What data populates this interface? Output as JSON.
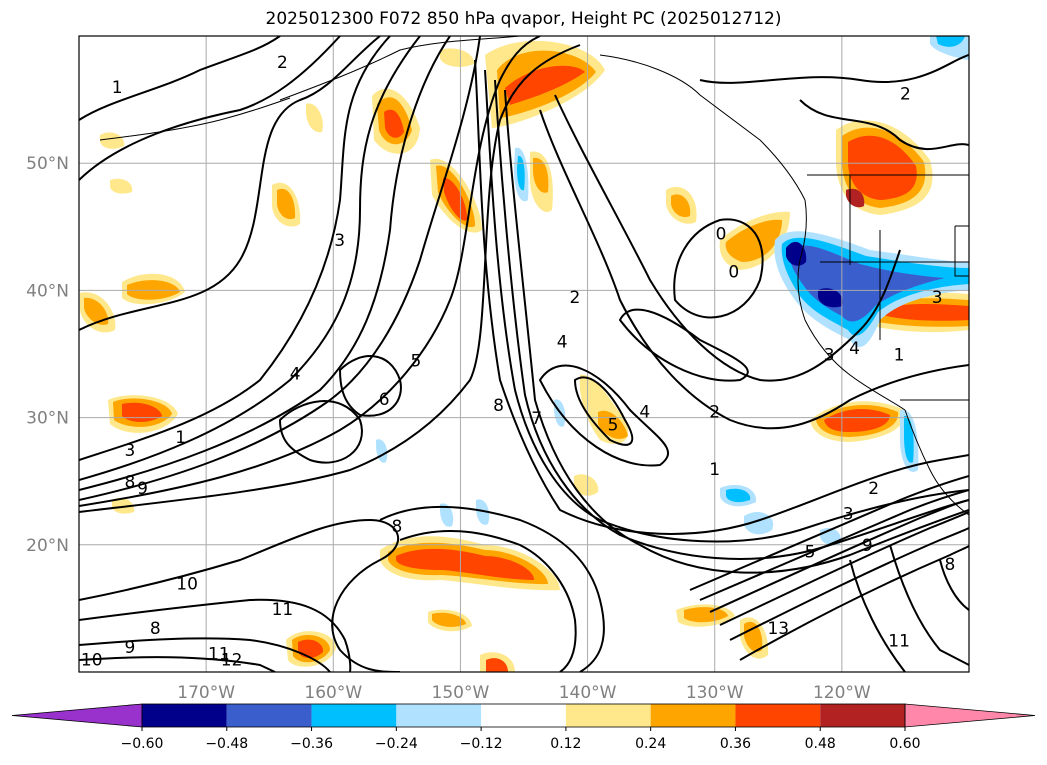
{
  "title": "2025012300 F072 850 hPa qvapor, Height PC (2025012712)",
  "map": {
    "projection": "lat-lon",
    "extent": {
      "lon_min": -180,
      "lon_max": -110,
      "lat_min": 10,
      "lat_max": 60
    },
    "gridlines": true,
    "lat_labels": [
      {
        "lat": 50,
        "text": "50°N"
      },
      {
        "lat": 40,
        "text": "40°N"
      },
      {
        "lat": 30,
        "text": "30°N"
      },
      {
        "lat": 20,
        "text": "20°N"
      }
    ],
    "lon_labels": [
      {
        "lon": -170,
        "text": "170°W"
      },
      {
        "lon": -160,
        "text": "160°W"
      },
      {
        "lon": -150,
        "text": "150°W"
      },
      {
        "lon": -140,
        "text": "140°W"
      },
      {
        "lon": -130,
        "text": "130°W"
      },
      {
        "lon": -120,
        "text": "120°W"
      }
    ]
  },
  "colorbar": {
    "levels": [
      -0.6,
      -0.48,
      -0.36,
      -0.24,
      -0.12,
      0.12,
      0.24,
      0.36,
      0.48,
      0.6
    ],
    "tick_labels": [
      "−0.60",
      "−0.48",
      "−0.36",
      "−0.24",
      "−0.12",
      "0.12",
      "0.24",
      "0.36",
      "0.48",
      "0.60"
    ],
    "colors": [
      "#9932CC",
      "#00008B",
      "#3A5FCD",
      "#00BFFF",
      "#B0E2FF",
      "#FFFFFF",
      "#FFE88C",
      "#FFA500",
      "#FF4500",
      "#B22222",
      "#FF88AA"
    ],
    "extend": "both"
  },
  "contour_labels": [
    {
      "text": "1",
      "lon": -177,
      "lat": 55.5
    },
    {
      "text": "2",
      "lon": -164,
      "lat": 57.5
    },
    {
      "text": "3",
      "lon": -159.5,
      "lat": 43.5
    },
    {
      "text": "4",
      "lon": -163,
      "lat": 33
    },
    {
      "text": "5",
      "lon": -153.5,
      "lat": 34
    },
    {
      "text": "6",
      "lon": -156,
      "lat": 31
    },
    {
      "text": "3",
      "lon": -176,
      "lat": 27
    },
    {
      "text": "1",
      "lon": -172,
      "lat": 28
    },
    {
      "text": "8",
      "lon": -176,
      "lat": 24.5
    },
    {
      "text": "9",
      "lon": -175,
      "lat": 24
    },
    {
      "text": "2",
      "lon": -141,
      "lat": 39
    },
    {
      "text": "4",
      "lon": -142,
      "lat": 35.5
    },
    {
      "text": "8",
      "lon": -147,
      "lat": 30.5
    },
    {
      "text": "7",
      "lon": -144,
      "lat": 29.5
    },
    {
      "text": "5",
      "lon": -138,
      "lat": 29
    },
    {
      "text": "4",
      "lon": -135.5,
      "lat": 30
    },
    {
      "text": "2",
      "lon": -130,
      "lat": 30
    },
    {
      "text": "0",
      "lon": -129.5,
      "lat": 44
    },
    {
      "text": "0",
      "lon": -128.5,
      "lat": 41
    },
    {
      "text": "1",
      "lon": -130,
      "lat": 25.5
    },
    {
      "text": "2",
      "lon": -115,
      "lat": 55
    },
    {
      "text": "3",
      "lon": -121,
      "lat": 34.5
    },
    {
      "text": "4",
      "lon": -119,
      "lat": 35
    },
    {
      "text": "3",
      "lon": -112.5,
      "lat": 39
    },
    {
      "text": "1",
      "lon": -115.5,
      "lat": 34.5
    },
    {
      "text": "2",
      "lon": -117.5,
      "lat": 24
    },
    {
      "text": "3",
      "lon": -119.5,
      "lat": 22
    },
    {
      "text": "5",
      "lon": -122.5,
      "lat": 19
    },
    {
      "text": "9",
      "lon": -118,
      "lat": 19.5
    },
    {
      "text": "13",
      "lon": -125,
      "lat": 13
    },
    {
      "text": "10",
      "lon": -171.5,
      "lat": 16.5
    },
    {
      "text": "11",
      "lon": -164,
      "lat": 14.5
    },
    {
      "text": "8",
      "lon": -174,
      "lat": 13
    },
    {
      "text": "9",
      "lon": -176,
      "lat": 11.5
    },
    {
      "text": "10",
      "lon": -179,
      "lat": 10.5
    },
    {
      "text": "11",
      "lon": -169,
      "lat": 11
    },
    {
      "text": "12",
      "lon": -168,
      "lat": 10.5
    },
    {
      "text": "11",
      "lon": -115.5,
      "lat": 12
    },
    {
      "text": "8",
      "lon": -111.5,
      "lat": 18
    },
    {
      "text": "8",
      "lon": -155,
      "lat": 21
    }
  ]
}
